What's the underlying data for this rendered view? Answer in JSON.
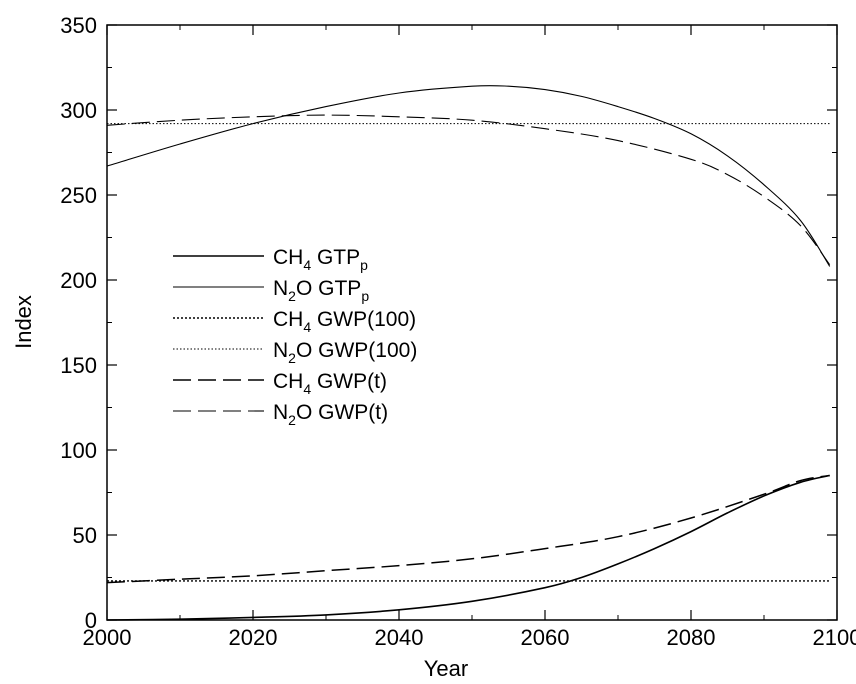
{
  "chart_data": {
    "type": "line",
    "title": "",
    "xlabel": "Year",
    "ylabel": "Index",
    "xlim": [
      2000,
      2100
    ],
    "ylim": [
      0,
      350
    ],
    "xticks": [
      2000,
      2020,
      2040,
      2060,
      2080,
      2100
    ],
    "yticks": [
      0,
      50,
      100,
      150,
      200,
      250,
      300,
      350
    ],
    "minor_ticks": true,
    "grid": false,
    "legend_position": "left",
    "series": [
      {
        "name": "CH4 GTPp",
        "legend": {
          "base": "CH",
          "sub1": "4",
          "mid": " GTP",
          "sub2": "p",
          "tail": ""
        },
        "style": "solid",
        "stroke_width": 1.6,
        "x": [
          2000,
          2010,
          2020,
          2030,
          2040,
          2050,
          2060,
          2065,
          2070,
          2075,
          2080,
          2085,
          2090,
          2095,
          2099
        ],
        "y": [
          0,
          0.5,
          1.5,
          3,
          6,
          11,
          19,
          25,
          33,
          42,
          52,
          63,
          73,
          81,
          85
        ]
      },
      {
        "name": "N2O GTPp",
        "legend": {
          "base": "N",
          "sub1": "2",
          "mid": "O GTP",
          "sub2": "p",
          "tail": ""
        },
        "style": "solid",
        "stroke_width": 1.1,
        "x": [
          2000,
          2010,
          2020,
          2030,
          2040,
          2050,
          2055,
          2060,
          2065,
          2070,
          2075,
          2080,
          2085,
          2090,
          2095,
          2099
        ],
        "y": [
          267,
          280,
          292,
          302,
          310,
          314,
          314,
          312,
          308,
          302,
          295,
          286,
          273,
          256,
          235,
          208
        ]
      },
      {
        "name": "CH4 GWP(100)",
        "legend": {
          "base": "CH",
          "sub1": "4",
          "mid": " GWP(100)",
          "sub2": "",
          "tail": ""
        },
        "style": "dotted",
        "stroke_width": 1.4,
        "x": [
          2000,
          2099
        ],
        "y": [
          23,
          23
        ]
      },
      {
        "name": "N2O GWP(100)",
        "legend": {
          "base": "N",
          "sub1": "2",
          "mid": "O GWP(100)",
          "sub2": "",
          "tail": ""
        },
        "style": "dotted-fine",
        "stroke_width": 1.0,
        "x": [
          2000,
          2099
        ],
        "y": [
          292,
          292
        ]
      },
      {
        "name": "CH4 GWP(t)",
        "legend": {
          "base": "CH",
          "sub1": "4",
          "mid": " GWP(t)",
          "sub2": "",
          "tail": ""
        },
        "style": "dashed",
        "stroke_width": 1.5,
        "x": [
          2000,
          2010,
          2020,
          2030,
          2040,
          2050,
          2060,
          2070,
          2080,
          2090,
          2095,
          2099
        ],
        "y": [
          22,
          24,
          26,
          29,
          32,
          36,
          42,
          49,
          60,
          74,
          82,
          85
        ]
      },
      {
        "name": "N2O GWP(t)",
        "legend": {
          "base": "N",
          "sub1": "2",
          "mid": "O GWP(t)",
          "sub2": "",
          "tail": ""
        },
        "style": "dashed",
        "stroke_width": 1.1,
        "x": [
          2000,
          2010,
          2020,
          2030,
          2040,
          2050,
          2060,
          2070,
          2080,
          2085,
          2090,
          2095,
          2099
        ],
        "y": [
          291,
          294,
          296,
          297,
          296,
          294,
          289,
          282,
          271,
          262,
          249,
          232,
          209
        ]
      }
    ]
  }
}
